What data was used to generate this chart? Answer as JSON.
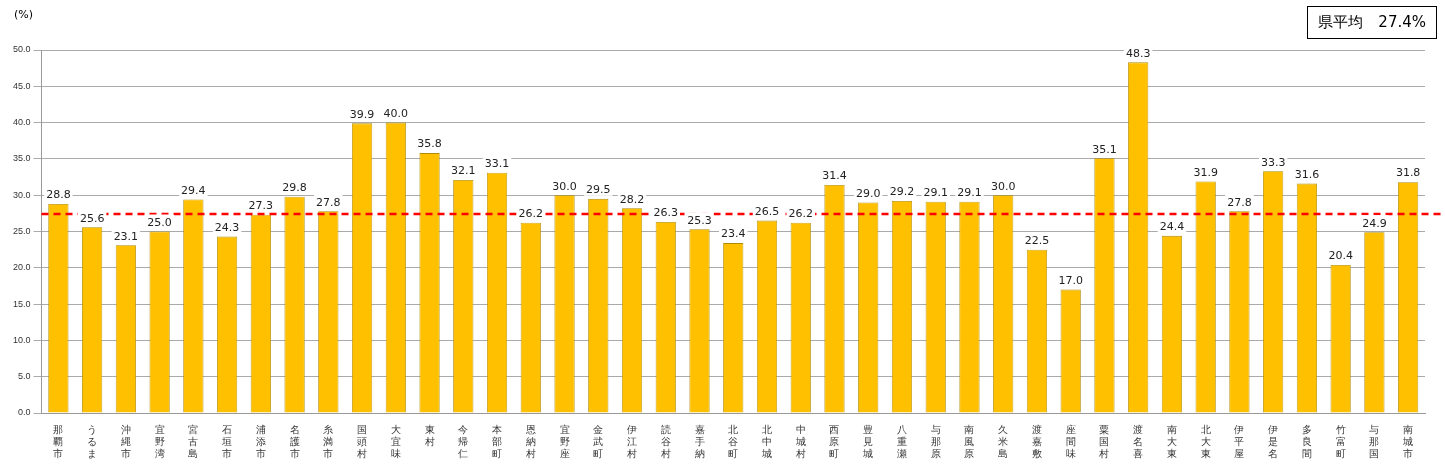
{
  "chart_data": {
    "type": "bar",
    "ylabel": "(%)",
    "categories": [
      "那覇市",
      "うるま",
      "沖縄市",
      "宜野湾",
      "宮古島",
      "石垣市",
      "浦添市",
      "名護市",
      "糸満市",
      "国頭村",
      "大宜味",
      "東村",
      "今帰仁",
      "本部町",
      "恩納村",
      "宜野座",
      "金武町",
      "伊江村",
      "読谷村",
      "嘉手納",
      "北谷町",
      "北中城",
      "中城村",
      "西原町",
      "豊見城",
      "八重瀬",
      "与那原",
      "南風原",
      "久米島",
      "渡嘉敷",
      "座間味",
      "粟国村",
      "渡名喜",
      "南大東",
      "北大東",
      "伊平屋",
      "伊是名",
      "多良間",
      "竹富町",
      "与那国",
      "南城市"
    ],
    "values": [
      28.8,
      25.6,
      23.1,
      25.0,
      29.4,
      24.3,
      27.3,
      29.8,
      27.8,
      39.9,
      40.0,
      35.8,
      32.1,
      33.1,
      26.2,
      30.0,
      29.5,
      28.2,
      26.3,
      25.3,
      23.4,
      26.5,
      26.2,
      31.4,
      29.0,
      29.2,
      29.1,
      29.1,
      30.0,
      22.5,
      17.0,
      35.1,
      48.3,
      24.4,
      31.9,
      27.8,
      33.3,
      31.6,
      20.4,
      24.9,
      31.8
    ],
    "value_labels": [
      "28.8",
      "25.6",
      "23.1",
      "25.0",
      "29.4",
      "24.3",
      "27.3",
      "29.8",
      "27.8",
      "39.9",
      "40.0",
      "35.8",
      "32.1",
      "33.1",
      "26.2",
      "30.0",
      "29.5",
      "28.2",
      "26.3",
      "25.3",
      "23.4",
      "26.5",
      "26.2",
      "31.4",
      "29.0",
      "29.2",
      "29.1",
      "29.1",
      "30.0",
      "22.5",
      "17.0",
      "35.1",
      "48.3",
      "24.4",
      "31.9",
      "27.8",
      "33.3",
      "31.6",
      "20.4",
      "24.9",
      "31.8"
    ],
    "color": "#ffc000",
    "ylim": [
      0,
      50
    ],
    "yticks": [
      {
        "value": 0,
        "label": "0.0"
      },
      {
        "value": 5,
        "label": "5.0"
      },
      {
        "value": 10,
        "label": "10.0"
      },
      {
        "value": 15,
        "label": "15.0"
      },
      {
        "value": 20,
        "label": "20.0"
      },
      {
        "value": 25,
        "label": "25.0"
      },
      {
        "value": 30,
        "label": "30.0"
      },
      {
        "value": 35,
        "label": "35.0"
      },
      {
        "value": 40,
        "label": "40.0"
      },
      {
        "value": 45,
        "label": "45.0"
      },
      {
        "value": 50,
        "label": "50.0"
      }
    ],
    "ref_lines": [
      {
        "axis": "y",
        "value": 27.4,
        "color": "#ff0000",
        "line_style": "dashed"
      }
    ],
    "annotations": [
      "県平均　27.4%"
    ],
    "grid": "y",
    "legend": false
  }
}
